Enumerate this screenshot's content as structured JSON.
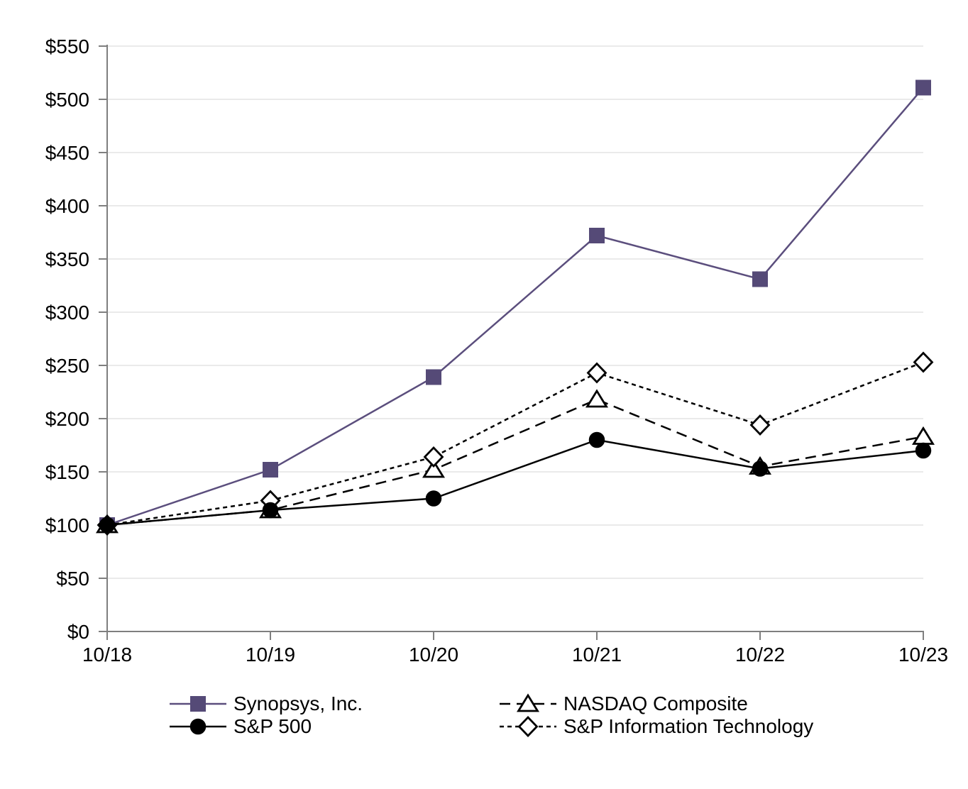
{
  "chart_data": {
    "type": "line",
    "title": "",
    "xlabel": "",
    "ylabel": "",
    "categories": [
      "10/18",
      "10/19",
      "10/20",
      "10/21",
      "10/22",
      "10/23"
    ],
    "series": [
      {
        "name": "Synopsys, Inc.",
        "values": [
          100,
          152,
          239,
          372,
          331,
          511
        ],
        "line_color": "#5B4E7D",
        "marker": "square",
        "marker_fill": "#554A77",
        "marker_stroke": "#554A77",
        "dash": "solid"
      },
      {
        "name": "NASDAQ Composite",
        "values": [
          100,
          114,
          152,
          218,
          155,
          183
        ],
        "line_color": "#000000",
        "marker": "triangle-open",
        "marker_fill": "#FFFFFF",
        "marker_stroke": "#000000",
        "dash": "long-dash"
      },
      {
        "name": "S&P Information Technology",
        "values": [
          100,
          123,
          164,
          243,
          194,
          253
        ],
        "line_color": "#000000",
        "marker": "diamond-open",
        "marker_fill": "#FFFFFF",
        "marker_stroke": "#000000",
        "dash": "short-dash"
      },
      {
        "name": "S&P 500",
        "values": [
          100,
          114,
          125,
          180,
          153,
          170
        ],
        "line_color": "#000000",
        "marker": "circle",
        "marker_fill": "#000000",
        "marker_stroke": "#000000",
        "dash": "solid"
      }
    ],
    "ylim": [
      0,
      550
    ],
    "ytick_step": 50,
    "ytick_prefix": "$",
    "ytick_labels": [
      "$0",
      "$50",
      "$100",
      "$150",
      "$200",
      "$250",
      "$300",
      "$350",
      "$400",
      "$450",
      "$500",
      "$550"
    ],
    "grid": "horizontal",
    "legend_position": "bottom",
    "legend_columns": [
      [
        0,
        3
      ],
      [
        1,
        2
      ]
    ],
    "colors": {
      "background": "#FFFFFF",
      "gridline": "#E3E3E3",
      "axis": "#7F7F7F",
      "tick": "#7F7F7F",
      "text": "#000000"
    }
  }
}
